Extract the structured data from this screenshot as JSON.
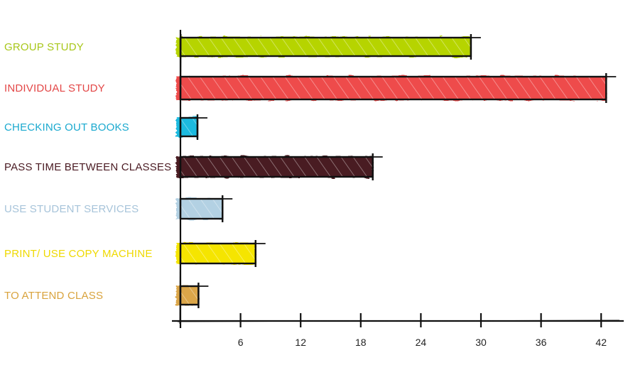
{
  "chart_data": {
    "type": "bar",
    "orientation": "horizontal",
    "categories": [
      "GROUP STUDY",
      "INDIVIDUAL STUDY",
      "CHECKING OUT BOOKS",
      "PASS TIME BETWEEN CLASSES",
      "USE STUDENT SERVICES",
      "PRINT/ USE COPY MACHINE",
      "TO ATTEND CLASS"
    ],
    "values": [
      29,
      42.5,
      1.7,
      19.2,
      4.2,
      7.5,
      1.8
    ],
    "colors": [
      "#b6d400",
      "#ee4b4b",
      "#1bbadf",
      "#4a1a22",
      "#b3d1e3",
      "#f5e500",
      "#dba648"
    ],
    "label_colors": [
      "#a8c71a",
      "#e34747",
      "#1aa9cf",
      "#4a1a22",
      "#a7c4da",
      "#efd900",
      "#d9a33d"
    ],
    "xticks": [
      6,
      12,
      18,
      24,
      30,
      36,
      42
    ],
    "xlim": [
      0,
      44
    ],
    "title": "",
    "xlabel": "",
    "ylabel": "",
    "grid": false,
    "legend": "none"
  }
}
